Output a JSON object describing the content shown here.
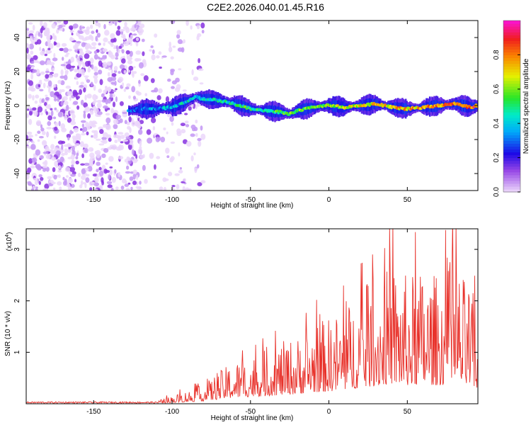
{
  "title": "C2E2.2026.040.01.45.R16",
  "chart_data": [
    {
      "type": "heatmap",
      "name": "spectrogram",
      "xlabel": "Height of straight line (km)",
      "ylabel": "Frequency (Hz)",
      "xlim": [
        -193,
        95
      ],
      "ylim": [
        -50,
        50
      ],
      "xticks": [
        -150,
        -100,
        -50,
        0,
        50
      ],
      "yticks": [
        -40,
        -20,
        0,
        20,
        40
      ],
      "ridge": {
        "x": [
          -128,
          -120,
          -110,
          -100,
          -90,
          -85,
          -80,
          -70,
          -60,
          -50,
          -40,
          -30,
          -25,
          -20,
          -10,
          0,
          10,
          20,
          30,
          40,
          50,
          60,
          70,
          80,
          90,
          95
        ],
        "y": [
          -3,
          -2,
          -2,
          -1,
          3,
          5,
          4,
          3,
          1,
          -2,
          -3,
          -4,
          -5,
          -3,
          -1,
          0,
          -1,
          0,
          1,
          -1,
          -2,
          -1,
          0,
          1,
          -1,
          0
        ]
      },
      "noise_region_x": [
        -193,
        -120
      ],
      "colorbar": {
        "label": "Normalized spectral amplitude",
        "range": [
          0,
          1
        ],
        "ticks": [
          0.0,
          0.2,
          0.4,
          0.6,
          0.8
        ],
        "tick_labels": [
          "0.0",
          "0.2",
          "0.4",
          "0.6",
          "0.8"
        ]
      }
    },
    {
      "type": "line",
      "name": "snr",
      "xlabel": "Height of straight line (km)",
      "ylabel": "SNR (10 * v/v)",
      "multiplier": "(x10",
      "multiplier_exp": "4",
      "xlim": [
        -193,
        95
      ],
      "ylim": [
        0,
        3.4
      ],
      "xticks": [
        -150,
        -100,
        -50,
        0,
        50
      ],
      "yticks": [
        1,
        2,
        3
      ],
      "color": "#e8322b",
      "envelope": {
        "x": [
          -193,
          -110,
          -100,
          -90,
          -80,
          -70,
          -60,
          -50,
          -40,
          -30,
          -20,
          -10,
          0,
          10,
          20,
          30,
          40,
          50,
          60,
          70,
          80,
          90,
          95
        ],
        "y": [
          0.02,
          0.05,
          0.15,
          0.25,
          0.35,
          0.6,
          0.8,
          0.9,
          1.0,
          1.15,
          1.25,
          1.5,
          1.6,
          1.8,
          2.1,
          2.3,
          2.6,
          2.4,
          2.5,
          2.4,
          2.6,
          2.2,
          1.8
        ]
      }
    }
  ]
}
